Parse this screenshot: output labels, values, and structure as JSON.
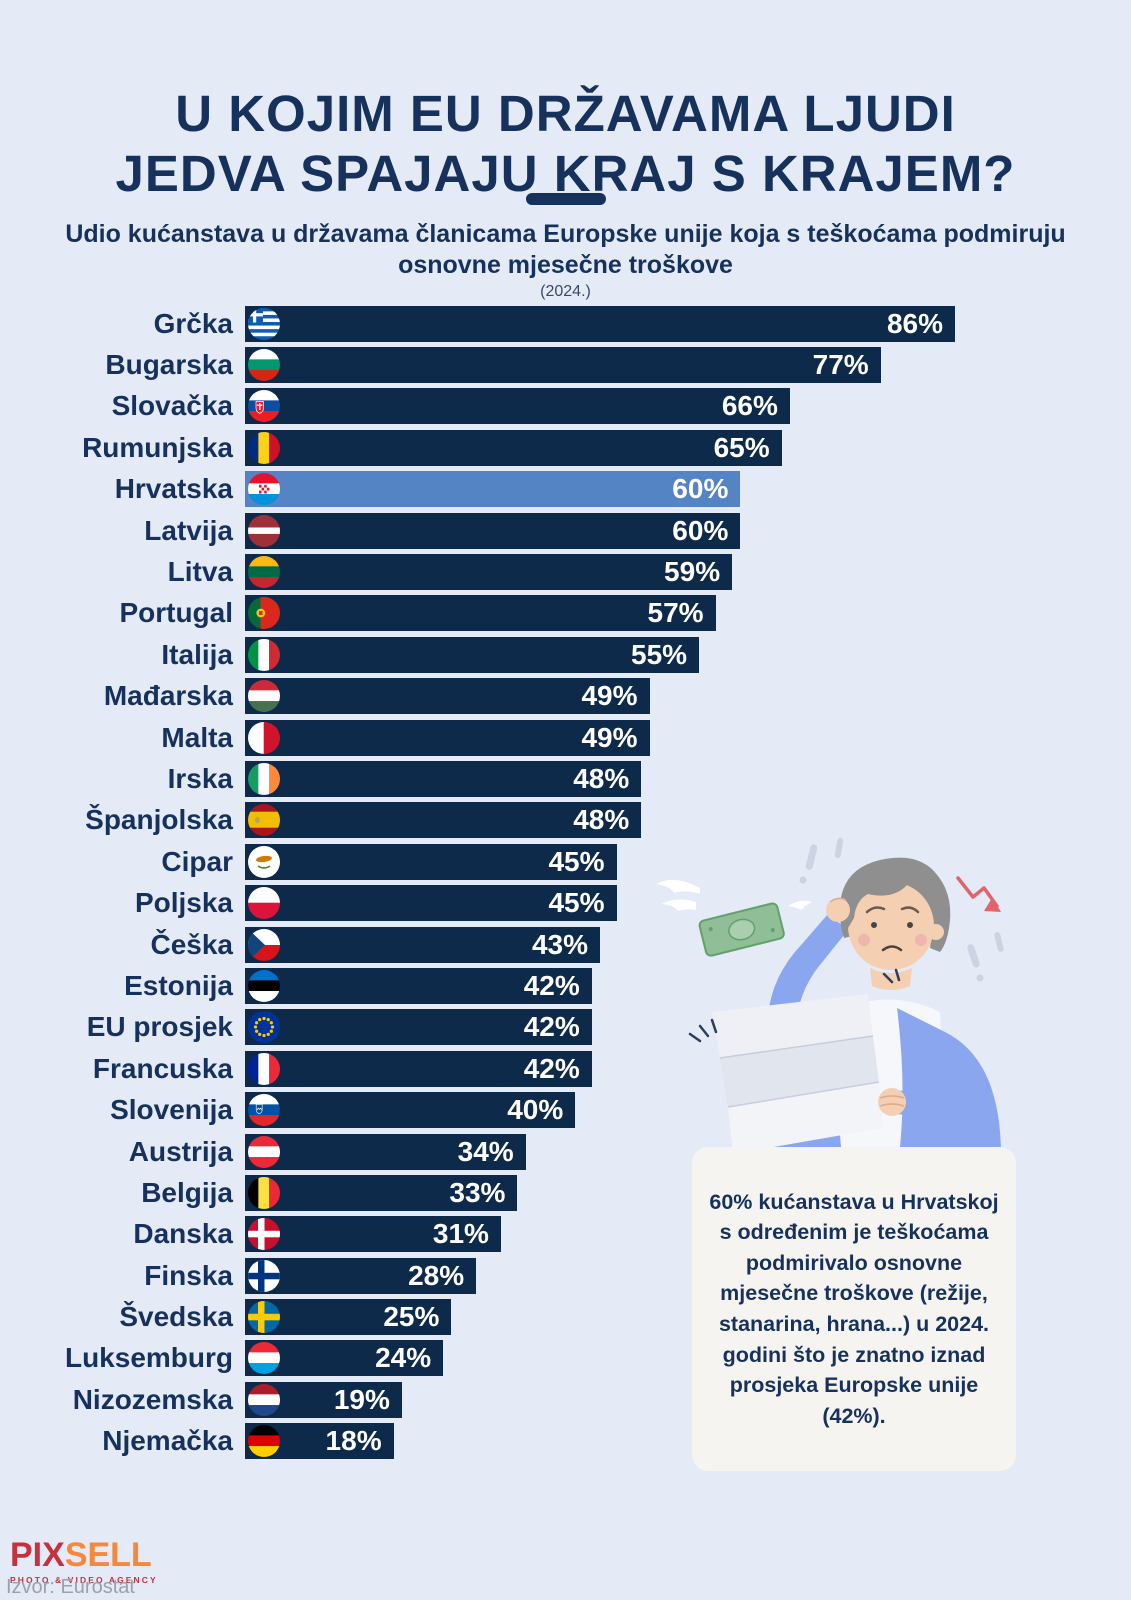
{
  "header": {
    "title_line1": "U KOJIM EU DRŽAVAMA LJUDI",
    "title_line2": "JEDVA SPAJAJU KRAJ S KRAJEM?",
    "subtitle": "Udio kućanstava u državama članicama Europske unije koja s teškoćama podmiruju osnovne mjesečne troškove",
    "year_note": "(2024.)"
  },
  "chart_data": {
    "type": "bar",
    "orientation": "horizontal",
    "title": "Udio kućanstava u državama članicama Europske unije koja s teškoćama podmiruju osnovne mjesečne troškove (2024.)",
    "unit": "%",
    "xlim": [
      0,
      86
    ],
    "grid": false,
    "legend": false,
    "highlight_category": "Hrvatska",
    "colors": {
      "background": "#e4eaf6",
      "bar": "#0e2a4b",
      "highlight_bar": "#5584c4",
      "label_text": "#16325c",
      "value_text": "#ffffff"
    },
    "categories": [
      "Grčka",
      "Bugarska",
      "Slovačka",
      "Rumunjska",
      "Hrvatska",
      "Latvija",
      "Litva",
      "Portugal",
      "Italija",
      "Mađarska",
      "Malta",
      "Irska",
      "Španjolska",
      "Cipar",
      "Poljska",
      "Češka",
      "Estonija",
      "EU prosjek",
      "Francuska",
      "Slovenija",
      "Austrija",
      "Belgija",
      "Danska",
      "Finska",
      "Švedska",
      "Luksemburg",
      "Nizozemska",
      "Njemačka"
    ],
    "values": [
      86,
      77,
      66,
      65,
      60,
      60,
      59,
      57,
      55,
      49,
      49,
      48,
      48,
      45,
      45,
      43,
      42,
      42,
      42,
      40,
      34,
      33,
      31,
      28,
      25,
      24,
      19,
      18
    ],
    "rows": [
      {
        "label": "Grčka",
        "value": 86,
        "flag": {
          "t": "greece"
        }
      },
      {
        "label": "Bugarska",
        "value": 77,
        "flag": {
          "t": "h",
          "c": [
            "#ffffff",
            "#00966e",
            "#d62612"
          ]
        }
      },
      {
        "label": "Slovačka",
        "value": 66,
        "flag": {
          "t": "h",
          "c": [
            "#ffffff",
            "#0b4ea2",
            "#ee1c25"
          ],
          "e": "sk"
        }
      },
      {
        "label": "Rumunjska",
        "value": 65,
        "flag": {
          "t": "v",
          "c": [
            "#002b7f",
            "#fcd116",
            "#ce1126"
          ]
        }
      },
      {
        "label": "Hrvatska",
        "value": 60,
        "highlight": true,
        "flag": {
          "t": "h",
          "c": [
            "#e8112d",
            "#ffffff",
            "#0093dd"
          ],
          "e": "checker"
        }
      },
      {
        "label": "Latvija",
        "value": 60,
        "flag": {
          "t": "h",
          "c": [
            "#9e3039",
            "#ffffff",
            "#9e3039"
          ],
          "w": [
            2,
            1,
            2
          ]
        }
      },
      {
        "label": "Litva",
        "value": 59,
        "flag": {
          "t": "h",
          "c": [
            "#fdb913",
            "#006a44",
            "#c1272d"
          ]
        }
      },
      {
        "label": "Portugal",
        "value": 57,
        "flag": {
          "t": "v",
          "c": [
            "#046a38",
            "#da291c"
          ],
          "w": [
            2,
            3
          ],
          "e": "pt"
        }
      },
      {
        "label": "Italija",
        "value": 55,
        "flag": {
          "t": "v",
          "c": [
            "#009246",
            "#ffffff",
            "#ce2b37"
          ]
        }
      },
      {
        "label": "Mađarska",
        "value": 49,
        "flag": {
          "t": "h",
          "c": [
            "#ce2939",
            "#ffffff",
            "#477050"
          ]
        }
      },
      {
        "label": "Malta",
        "value": 49,
        "flag": {
          "t": "v",
          "c": [
            "#ffffff",
            "#cf142b"
          ],
          "w": [
            1,
            1
          ]
        }
      },
      {
        "label": "Irska",
        "value": 48,
        "flag": {
          "t": "v",
          "c": [
            "#169b62",
            "#ffffff",
            "#ff883e"
          ]
        }
      },
      {
        "label": "Španjolska",
        "value": 48,
        "flag": {
          "t": "h",
          "c": [
            "#aa151b",
            "#f1bf00",
            "#aa151b"
          ],
          "w": [
            1,
            2,
            1
          ],
          "e": "es"
        }
      },
      {
        "label": "Cipar",
        "value": 45,
        "flag": {
          "t": "cy"
        }
      },
      {
        "label": "Poljska",
        "value": 45,
        "flag": {
          "t": "h",
          "c": [
            "#ffffff",
            "#dc143c"
          ],
          "w": [
            1,
            1
          ]
        }
      },
      {
        "label": "Češka",
        "value": 43,
        "flag": {
          "t": "cz"
        }
      },
      {
        "label": "Estonija",
        "value": 42,
        "flag": {
          "t": "h",
          "c": [
            "#0072ce",
            "#000000",
            "#ffffff"
          ]
        }
      },
      {
        "label": "EU prosjek",
        "value": 42,
        "flag": {
          "t": "eu"
        }
      },
      {
        "label": "Francuska",
        "value": 42,
        "flag": {
          "t": "v",
          "c": [
            "#002395",
            "#ffffff",
            "#ed2939"
          ]
        }
      },
      {
        "label": "Slovenija",
        "value": 40,
        "flag": {
          "t": "h",
          "c": [
            "#ffffff",
            "#0052a5",
            "#e3252d"
          ],
          "e": "si"
        }
      },
      {
        "label": "Austrija",
        "value": 34,
        "flag": {
          "t": "h",
          "c": [
            "#ed2939",
            "#ffffff",
            "#ed2939"
          ]
        }
      },
      {
        "label": "Belgija",
        "value": 33,
        "flag": {
          "t": "v",
          "c": [
            "#000000",
            "#fae042",
            "#ed2939"
          ]
        }
      },
      {
        "label": "Danska",
        "value": 31,
        "flag": {
          "t": "nordic",
          "bg": "#c8102e",
          "cross": "#ffffff"
        }
      },
      {
        "label": "Finska",
        "value": 28,
        "flag": {
          "t": "nordic",
          "bg": "#ffffff",
          "cross": "#003580"
        }
      },
      {
        "label": "Švedska",
        "value": 25,
        "flag": {
          "t": "nordic",
          "bg": "#006aa7",
          "cross": "#fecc02"
        }
      },
      {
        "label": "Luksemburg",
        "value": 24,
        "flag": {
          "t": "h",
          "c": [
            "#ed2939",
            "#ffffff",
            "#00a2e1"
          ]
        }
      },
      {
        "label": "Nizozemska",
        "value": 19,
        "flag": {
          "t": "h",
          "c": [
            "#ae1c28",
            "#ffffff",
            "#21468b"
          ]
        }
      },
      {
        "label": "Njemačka",
        "value": 18,
        "flag": {
          "t": "h",
          "c": [
            "#000000",
            "#dd0000",
            "#ffce00"
          ]
        }
      }
    ]
  },
  "annotation": {
    "text": "60% kućanstava u Hrvatskoj s određenim je teškoćama podmirivalo osnovne mjesečne troškove (režije, stanarina, hrana...) u 2024. godini što je znatno iznad prosjeka Europske unije (42%)."
  },
  "illustration": {
    "description": "Worried man holding a long bill, flying banknote, red downward arrow"
  },
  "footer": {
    "logo_pix": "PIX",
    "logo_sell": "SELL",
    "logo_tagline": "PHOTO & VIDEO AGENCY",
    "source": "Izvor: Eurostat"
  }
}
